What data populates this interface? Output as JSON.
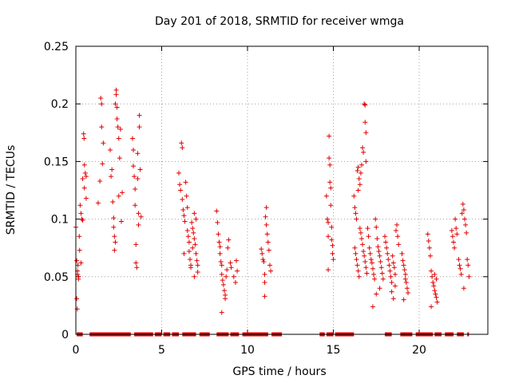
{
  "chart_data": {
    "type": "scatter",
    "title": "Day 201 of 2018, SRMTID for receiver wmga",
    "xlabel": "GPS time / hours",
    "ylabel": "SRMTID / TECUs",
    "xlim": [
      0,
      24
    ],
    "ylim": [
      0,
      0.25
    ],
    "grid": true,
    "marker": "+",
    "color": "#e00000",
    "x_ticks": [
      0,
      5,
      10,
      15,
      20
    ],
    "x_tick_labels": [
      "0",
      "5",
      "10",
      "15",
      "20"
    ],
    "y_ticks": [
      0,
      0.05,
      0.1,
      0.15,
      0.2,
      0.25
    ],
    "y_tick_labels": [
      "0",
      "0.05",
      "0.1",
      "0.15",
      "0.2",
      "0.25"
    ],
    "series": [
      {
        "name": "SRMTID",
        "points": [
          [
            0.0,
            0.093
          ],
          [
            0.05,
            0.064
          ],
          [
            0.05,
            0.031
          ],
          [
            0.08,
            0.022
          ],
          [
            0.1,
            0.055
          ],
          [
            0.1,
            0.052
          ],
          [
            0.12,
            0.06
          ],
          [
            0.15,
            0.05
          ],
          [
            0.15,
            0.048
          ],
          [
            0.2,
            0.085
          ],
          [
            0.22,
            0.073
          ],
          [
            0.25,
            0.112
          ],
          [
            0.3,
            0.105
          ],
          [
            0.3,
            0.062
          ],
          [
            0.35,
            0.1
          ],
          [
            0.4,
            0.099
          ],
          [
            0.4,
            0.135
          ],
          [
            0.45,
            0.174
          ],
          [
            0.48,
            0.17
          ],
          [
            0.5,
            0.147
          ],
          [
            0.5,
            0.127
          ],
          [
            0.55,
            0.14
          ],
          [
            0.6,
            0.137
          ],
          [
            0.6,
            0.118
          ],
          [
            1.3,
            0.114
          ],
          [
            1.4,
            0.133
          ],
          [
            1.45,
            0.205
          ],
          [
            1.5,
            0.2
          ],
          [
            1.5,
            0.18
          ],
          [
            1.55,
            0.148
          ],
          [
            1.6,
            0.166
          ],
          [
            2.0,
            0.16
          ],
          [
            2.05,
            0.137
          ],
          [
            2.1,
            0.143
          ],
          [
            2.15,
            0.115
          ],
          [
            2.2,
            0.101
          ],
          [
            2.2,
            0.093
          ],
          [
            2.25,
            0.085
          ],
          [
            2.25,
            0.073
          ],
          [
            2.3,
            0.08
          ],
          [
            2.3,
            0.2
          ],
          [
            2.35,
            0.212
          ],
          [
            2.35,
            0.208
          ],
          [
            2.4,
            0.197
          ],
          [
            2.4,
            0.187
          ],
          [
            2.45,
            0.18
          ],
          [
            2.5,
            0.17
          ],
          [
            2.5,
            0.12
          ],
          [
            2.55,
            0.153
          ],
          [
            2.6,
            0.178
          ],
          [
            2.65,
            0.098
          ],
          [
            2.7,
            0.123
          ],
          [
            3.3,
            0.17
          ],
          [
            3.35,
            0.16
          ],
          [
            3.35,
            0.146
          ],
          [
            3.4,
            0.137
          ],
          [
            3.45,
            0.126
          ],
          [
            3.45,
            0.112
          ],
          [
            3.5,
            0.078
          ],
          [
            3.5,
            0.062
          ],
          [
            3.55,
            0.058
          ],
          [
            3.6,
            0.157
          ],
          [
            3.6,
            0.135
          ],
          [
            3.65,
            0.105
          ],
          [
            3.65,
            0.095
          ],
          [
            3.7,
            0.19
          ],
          [
            3.7,
            0.18
          ],
          [
            3.75,
            0.143
          ],
          [
            3.8,
            0.102
          ],
          [
            6.0,
            0.14
          ],
          [
            6.05,
            0.13
          ],
          [
            6.1,
            0.125
          ],
          [
            6.15,
            0.166
          ],
          [
            6.2,
            0.162
          ],
          [
            6.2,
            0.117
          ],
          [
            6.25,
            0.108
          ],
          [
            6.3,
            0.103
          ],
          [
            6.35,
            0.098
          ],
          [
            6.4,
            0.132
          ],
          [
            6.45,
            0.12
          ],
          [
            6.5,
            0.09
          ],
          [
            6.55,
            0.085
          ],
          [
            6.6,
            0.08
          ],
          [
            6.6,
            0.072
          ],
          [
            6.65,
            0.065
          ],
          [
            6.7,
            0.06
          ],
          [
            6.7,
            0.058
          ],
          [
            6.75,
            0.097
          ],
          [
            6.8,
            0.092
          ],
          [
            6.85,
            0.088
          ],
          [
            6.9,
            0.105
          ],
          [
            6.9,
            0.083
          ],
          [
            6.95,
            0.078
          ],
          [
            7.0,
            0.07
          ],
          [
            7.05,
            0.064
          ],
          [
            7.1,
            0.06
          ],
          [
            7.1,
            0.054
          ],
          [
            6.3,
            0.07
          ],
          [
            6.9,
            0.05
          ],
          [
            7.0,
            0.1
          ],
          [
            6.5,
            0.11
          ],
          [
            6.8,
            0.075
          ],
          [
            8.2,
            0.107
          ],
          [
            8.25,
            0.097
          ],
          [
            8.3,
            0.087
          ],
          [
            8.35,
            0.08
          ],
          [
            8.4,
            0.076
          ],
          [
            8.4,
            0.07
          ],
          [
            8.45,
            0.063
          ],
          [
            8.5,
            0.06
          ],
          [
            8.5,
            0.052
          ],
          [
            8.55,
            0.047
          ],
          [
            8.6,
            0.043
          ],
          [
            8.65,
            0.038
          ],
          [
            8.7,
            0.034
          ],
          [
            8.7,
            0.031
          ],
          [
            8.5,
            0.019
          ],
          [
            8.75,
            0.05
          ],
          [
            8.8,
            0.056
          ],
          [
            8.85,
            0.075
          ],
          [
            8.9,
            0.082
          ],
          [
            9.0,
            0.062
          ],
          [
            9.05,
            0.058
          ],
          [
            9.2,
            0.05
          ],
          [
            9.3,
            0.045
          ],
          [
            9.35,
            0.064
          ],
          [
            9.4,
            0.055
          ],
          [
            10.8,
            0.074
          ],
          [
            10.85,
            0.07
          ],
          [
            10.9,
            0.065
          ],
          [
            10.95,
            0.063
          ],
          [
            11.0,
            0.052
          ],
          [
            11.0,
            0.045
          ],
          [
            11.05,
            0.102
          ],
          [
            11.1,
            0.11
          ],
          [
            11.1,
            0.095
          ],
          [
            11.15,
            0.087
          ],
          [
            11.2,
            0.08
          ],
          [
            11.25,
            0.073
          ],
          [
            11.3,
            0.06
          ],
          [
            11.35,
            0.055
          ],
          [
            11.0,
            0.033
          ],
          [
            14.6,
            0.12
          ],
          [
            14.65,
            0.1
          ],
          [
            14.7,
            0.097
          ],
          [
            14.7,
            0.085
          ],
          [
            14.75,
            0.172
          ],
          [
            14.75,
            0.153
          ],
          [
            14.8,
            0.147
          ],
          [
            14.8,
            0.132
          ],
          [
            14.85,
            0.127
          ],
          [
            14.85,
            0.112
          ],
          [
            14.9,
            0.093
          ],
          [
            14.9,
            0.082
          ],
          [
            14.95,
            0.077
          ],
          [
            14.95,
            0.07
          ],
          [
            15.0,
            0.065
          ],
          [
            14.7,
            0.056
          ],
          [
            16.2,
            0.12
          ],
          [
            16.25,
            0.11
          ],
          [
            16.3,
            0.105
          ],
          [
            16.35,
            0.1
          ],
          [
            16.4,
            0.142
          ],
          [
            16.45,
            0.145
          ],
          [
            16.45,
            0.125
          ],
          [
            16.5,
            0.135
          ],
          [
            16.55,
            0.13
          ],
          [
            16.6,
            0.14
          ],
          [
            16.65,
            0.147
          ],
          [
            16.7,
            0.162
          ],
          [
            16.75,
            0.158
          ],
          [
            16.8,
            0.2
          ],
          [
            16.85,
            0.199
          ],
          [
            16.85,
            0.184
          ],
          [
            16.9,
            0.175
          ],
          [
            16.9,
            0.15
          ],
          [
            16.25,
            0.075
          ],
          [
            16.3,
            0.07
          ],
          [
            16.35,
            0.065
          ],
          [
            16.4,
            0.06
          ],
          [
            16.45,
            0.055
          ],
          [
            16.5,
            0.05
          ],
          [
            16.55,
            0.092
          ],
          [
            16.6,
            0.088
          ],
          [
            16.65,
            0.083
          ],
          [
            16.7,
            0.078
          ],
          [
            16.75,
            0.072
          ],
          [
            16.8,
            0.068
          ],
          [
            16.85,
            0.063
          ],
          [
            16.9,
            0.058
          ],
          [
            16.95,
            0.053
          ],
          [
            17.0,
            0.092
          ],
          [
            17.05,
            0.085
          ],
          [
            17.1,
            0.075
          ],
          [
            17.15,
            0.07
          ],
          [
            17.2,
            0.065
          ],
          [
            17.25,
            0.062
          ],
          [
            17.3,
            0.057
          ],
          [
            17.35,
            0.052
          ],
          [
            17.4,
            0.048
          ],
          [
            17.45,
            0.1
          ],
          [
            17.5,
            0.093
          ],
          [
            17.55,
            0.083
          ],
          [
            17.6,
            0.076
          ],
          [
            17.65,
            0.072
          ],
          [
            17.7,
            0.068
          ],
          [
            17.75,
            0.063
          ],
          [
            17.8,
            0.058
          ],
          [
            17.85,
            0.053
          ],
          [
            17.9,
            0.048
          ],
          [
            17.3,
            0.024
          ],
          [
            17.5,
            0.035
          ],
          [
            17.7,
            0.04
          ],
          [
            18.0,
            0.085
          ],
          [
            18.05,
            0.08
          ],
          [
            18.1,
            0.075
          ],
          [
            18.15,
            0.07
          ],
          [
            18.2,
            0.065
          ],
          [
            18.25,
            0.06
          ],
          [
            18.3,
            0.055
          ],
          [
            18.35,
            0.05
          ],
          [
            18.4,
            0.045
          ],
          [
            18.45,
            0.068
          ],
          [
            18.5,
            0.062
          ],
          [
            18.55,
            0.058
          ],
          [
            18.6,
            0.052
          ],
          [
            18.65,
            0.09
          ],
          [
            18.7,
            0.095
          ],
          [
            18.75,
            0.085
          ],
          [
            18.8,
            0.078
          ],
          [
            18.4,
            0.037
          ],
          [
            18.5,
            0.031
          ],
          [
            18.6,
            0.042
          ],
          [
            19.0,
            0.07
          ],
          [
            19.05,
            0.064
          ],
          [
            19.1,
            0.06
          ],
          [
            19.15,
            0.056
          ],
          [
            19.2,
            0.052
          ],
          [
            19.25,
            0.045
          ],
          [
            19.3,
            0.04
          ],
          [
            19.35,
            0.036
          ],
          [
            19.1,
            0.03
          ],
          [
            19.2,
            0.048
          ],
          [
            20.5,
            0.087
          ],
          [
            20.55,
            0.081
          ],
          [
            20.6,
            0.075
          ],
          [
            20.65,
            0.068
          ],
          [
            20.7,
            0.055
          ],
          [
            20.75,
            0.05
          ],
          [
            20.8,
            0.045
          ],
          [
            20.85,
            0.042
          ],
          [
            20.9,
            0.038
          ],
          [
            20.95,
            0.035
          ],
          [
            21.0,
            0.032
          ],
          [
            21.05,
            0.028
          ],
          [
            20.7,
            0.024
          ],
          [
            20.9,
            0.052
          ],
          [
            21.0,
            0.048
          ],
          [
            21.9,
            0.09
          ],
          [
            21.95,
            0.085
          ],
          [
            22.0,
            0.08
          ],
          [
            22.05,
            0.075
          ],
          [
            22.1,
            0.1
          ],
          [
            22.15,
            0.092
          ],
          [
            22.2,
            0.087
          ],
          [
            22.3,
            0.065
          ],
          [
            22.35,
            0.06
          ],
          [
            22.4,
            0.057
          ],
          [
            22.45,
            0.052
          ],
          [
            22.5,
            0.105
          ],
          [
            22.55,
            0.113
          ],
          [
            22.6,
            0.108
          ],
          [
            22.65,
            0.1
          ],
          [
            22.7,
            0.095
          ],
          [
            22.75,
            0.088
          ],
          [
            22.8,
            0.065
          ],
          [
            22.85,
            0.06
          ],
          [
            22.9,
            0.05
          ],
          [
            22.6,
            0.04
          ]
        ]
      }
    ],
    "zero_runs": [
      [
        0.05,
        0.4
      ],
      [
        0.8,
        3.2
      ],
      [
        3.4,
        4.5
      ],
      [
        4.6,
        5.0
      ],
      [
        5.1,
        5.5
      ],
      [
        5.6,
        6.0
      ],
      [
        6.2,
        7.0
      ],
      [
        7.2,
        7.8
      ],
      [
        8.2,
        8.9
      ],
      [
        9.0,
        9.5
      ],
      [
        9.7,
        11.2
      ],
      [
        11.4,
        12.0
      ],
      [
        14.2,
        14.5
      ],
      [
        14.6,
        15.0
      ],
      [
        15.1,
        16.2
      ],
      [
        18.0,
        18.4
      ],
      [
        18.9,
        19.6
      ],
      [
        19.8,
        20.8
      ],
      [
        20.9,
        21.3
      ],
      [
        21.5,
        22.0
      ],
      [
        22.2,
        22.6
      ],
      [
        22.8,
        22.9
      ]
    ]
  }
}
